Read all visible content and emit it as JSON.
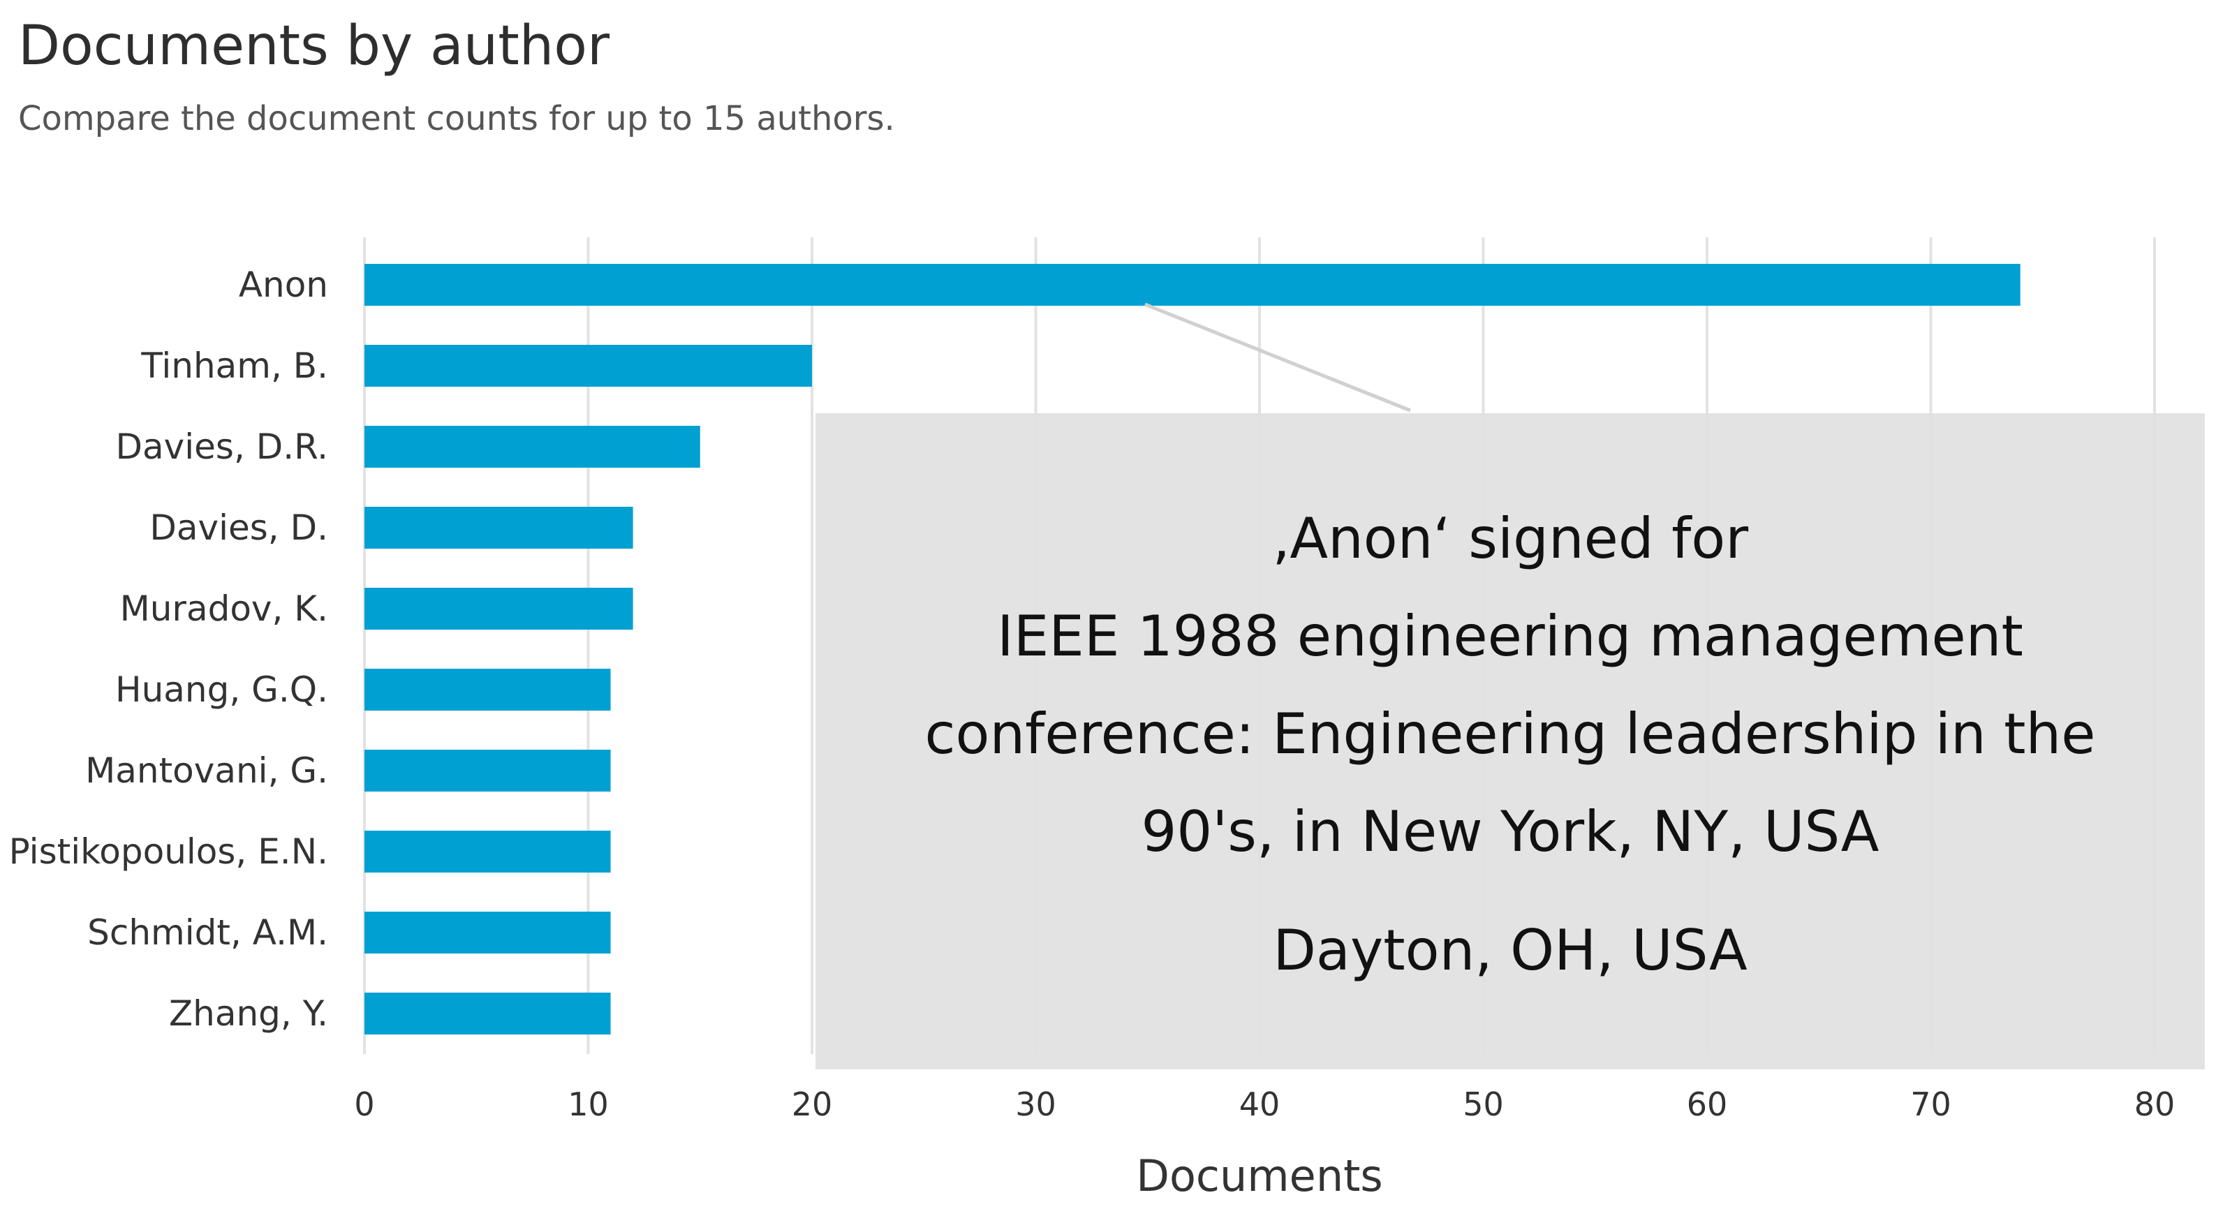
{
  "header": {
    "title": "Documents by author",
    "subtitle": "Compare the document counts for up to 15 authors."
  },
  "chart_data": {
    "type": "bar",
    "orientation": "horizontal",
    "title": "Documents by author",
    "subtitle": "Compare the document counts for up to 15 authors.",
    "categories": [
      "Anon",
      "Tinham, B.",
      "Davies, D.R.",
      "Davies, D.",
      "Muradov, K.",
      "Huang, G.Q.",
      "Mantovani, G.",
      "Pistikopoulos, E.N.",
      "Schmidt, A.M.",
      "Zhang, Y."
    ],
    "values": [
      74,
      20,
      15,
      12,
      12,
      11,
      11,
      11,
      11,
      11
    ],
    "xlabel": "Documents",
    "ylabel": "",
    "xlim": [
      0,
      80
    ],
    "xticks": [
      0,
      10,
      20,
      30,
      40,
      50,
      60,
      70,
      80
    ],
    "grid": true,
    "bar_color": "#00a0d2"
  },
  "annotation": {
    "lines": [
      "‚Anon‘ signed for",
      "IEEE 1988 engineering management",
      "conference: Engineering leadership in the",
      "90's, in New York, NY, USA"
    ],
    "location": "Dayton, OH, USA",
    "points_to": "Anon"
  },
  "colors": {
    "bar": "#00a0d2",
    "grid": "#e2e2e2",
    "annotation_bg": "#e1e1e1",
    "text": "#2e2e2e"
  }
}
